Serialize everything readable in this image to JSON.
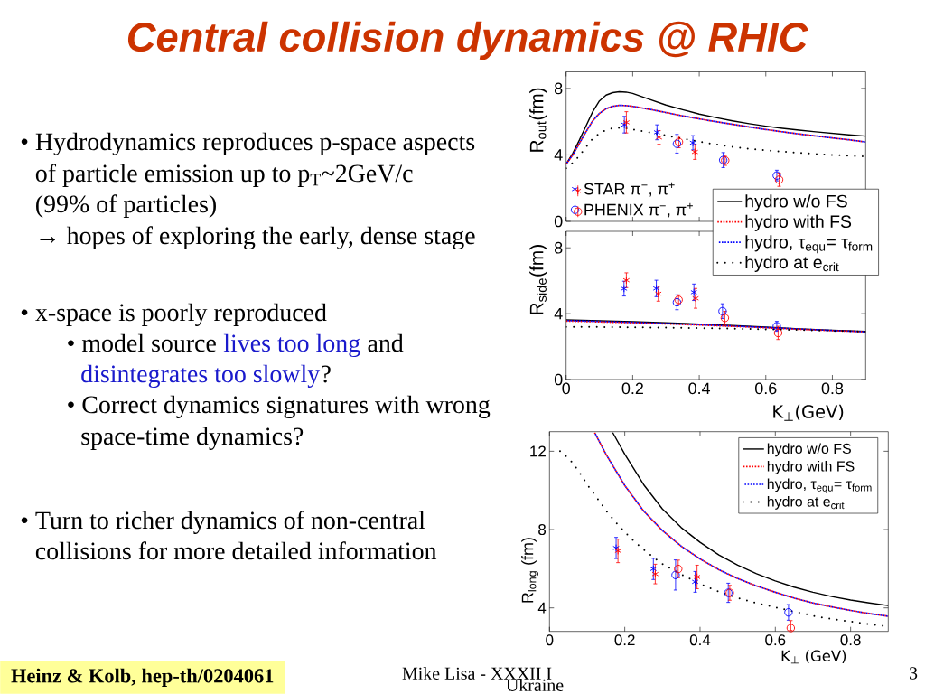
{
  "chart_data": [
    {
      "type": "other",
      "title": "Central collision dynamics @ RHIC",
      "annotations": [
        "• Hydrodynamics reproduces p-space aspects",
        "of particle emission up to p$_{T}$~2GeV/c",
        "(99% of particles)",
        "→ hopes of exploring the early, dense stage",
        "• x-space is poorly reproduced",
        "• model source",
        "lives too long",
        "and",
        "disintegrates too slowly",
        "?",
        "• Correct dynamics signatures with wrong",
        "space-time dynamics?",
        "• Turn to richer dynamics of non-central",
        "collisions for more detailed information",
        "Heinz & Kolb, hep-th/0204061",
        "Mike Lisa - XXXII I",
        "Ukraine",
        "3"
      ]
    },
    {
      "type": "line",
      "ylabel": "R$_{out}$(fm)",
      "xlim": [
        0,
        0.9
      ],
      "ylim": [
        0,
        9
      ],
      "xticks": [
        0,
        0.2,
        0.4,
        0.6,
        0.8
      ],
      "yticks": [
        0,
        4,
        8
      ],
      "tick_labels": "y",
      "legend": "bottom left",
      "series": [
        {
          "color": "#000000",
          "line_style": "solid",
          "x": [
            0,
            0.02,
            0.04,
            0.06,
            0.08,
            0.1,
            0.12,
            0.14,
            0.16,
            0.18,
            0.2,
            0.25,
            0.3,
            0.35,
            0.4,
            0.45,
            0.5,
            0.55,
            0.6,
            0.65,
            0.7,
            0.75,
            0.8,
            0.85,
            0.9
          ],
          "values": [
            3.45,
            4.1,
            4.9,
            5.75,
            6.6,
            7.25,
            7.6,
            7.75,
            7.8,
            7.78,
            7.7,
            7.35,
            7.0,
            6.72,
            6.46,
            6.25,
            6.05,
            5.88,
            5.73,
            5.6,
            5.49,
            5.39,
            5.3,
            5.21,
            5.13
          ]
        },
        {
          "color": "#ff0000",
          "line_style": "dashed",
          "x": [
            0,
            0.02,
            0.04,
            0.06,
            0.08,
            0.1,
            0.12,
            0.14,
            0.16,
            0.18,
            0.2,
            0.25,
            0.3,
            0.35,
            0.4,
            0.45,
            0.5,
            0.55,
            0.6,
            0.65,
            0.7,
            0.75,
            0.8,
            0.85,
            0.9
          ],
          "values": [
            3.45,
            4.0,
            4.7,
            5.4,
            6.05,
            6.5,
            6.78,
            6.93,
            6.98,
            6.97,
            6.92,
            6.75,
            6.55,
            6.35,
            6.17,
            6.0,
            5.84,
            5.68,
            5.53,
            5.39,
            5.26,
            5.14,
            5.02,
            4.91,
            4.78
          ]
        },
        {
          "color": "#0000ff",
          "line_style": "dashed",
          "x": [
            0,
            0.02,
            0.04,
            0.06,
            0.08,
            0.1,
            0.12,
            0.14,
            0.16,
            0.18,
            0.2,
            0.25,
            0.3,
            0.35,
            0.4,
            0.45,
            0.5,
            0.55,
            0.6,
            0.65,
            0.7,
            0.75,
            0.8,
            0.85,
            0.9
          ],
          "values": [
            3.45,
            4.0,
            4.7,
            5.4,
            6.05,
            6.5,
            6.78,
            6.93,
            6.98,
            6.97,
            6.92,
            6.75,
            6.55,
            6.35,
            6.17,
            6.0,
            5.84,
            5.68,
            5.53,
            5.39,
            5.26,
            5.14,
            5.02,
            4.91,
            4.78
          ]
        },
        {
          "color": "#000000",
          "line_style": "dotted",
          "x": [
            0,
            0.025,
            0.05,
            0.075,
            0.1,
            0.125,
            0.15,
            0.175,
            0.2,
            0.25,
            0.3,
            0.35,
            0.4,
            0.45,
            0.5,
            0.55,
            0.6,
            0.65,
            0.7,
            0.75,
            0.8,
            0.85,
            0.9
          ],
          "values": [
            3.2,
            3.6,
            4.22,
            4.87,
            5.3,
            5.55,
            5.64,
            5.62,
            5.53,
            5.35,
            5.17,
            4.98,
            4.8,
            4.63,
            4.49,
            4.37,
            4.28,
            4.2,
            4.13,
            4.06,
            4.0,
            3.95,
            3.9
          ]
        },
        {
          "name": "STAR π$^{−}$, π$^{+}$",
          "type": "scatter",
          "marker": "cross",
          "x": [
            0.175,
            0.181,
            0.273,
            0.279,
            0.381,
            0.387
          ],
          "values": [
            5.82,
            5.96,
            5.36,
            5.05,
            4.73,
            4.18
          ],
          "errors": [
            0.5,
            0.64,
            0.45,
            0.41,
            0.43,
            0.45
          ],
          "colors": [
            "#0000ff",
            "#ff0000",
            "#0000ff",
            "#ff0000",
            "#0000ff",
            "#ff0000"
          ]
        },
        {
          "name": "PHENIX π$^{−}$, π$^{+}$",
          "type": "scatter",
          "marker": "circle",
          "x": [
            0.333,
            0.339,
            0.472,
            0.478,
            0.633,
            0.64
          ],
          "values": [
            4.67,
            4.78,
            3.69,
            3.67,
            2.76,
            2.51
          ],
          "errors": [
            0.56,
            0.35,
            0.45,
            0.3,
            0.32,
            0.4
          ],
          "colors": [
            "#0000ff",
            "#ff0000",
            "#0000ff",
            "#ff0000",
            "#0000ff",
            "#ff0000"
          ]
        }
      ]
    },
    {
      "type": "line",
      "ylabel": "R$_{side}$(fm)",
      "xlabel": "K$_{⊥}$(GeV)",
      "xlim": [
        0,
        0.9
      ],
      "ylim": [
        0,
        9
      ],
      "xticks": [
        0,
        0.2,
        0.4,
        0.6,
        0.8
      ],
      "yticks": [
        0,
        4,
        8
      ],
      "legend": "top right",
      "series": [
        {
          "name": "hydro w/o FS",
          "color": "#000000",
          "line_style": "solid",
          "x": [
            0,
            0.1,
            0.2,
            0.3,
            0.4,
            0.5,
            0.6,
            0.7,
            0.8,
            0.9
          ],
          "values": [
            3.62,
            3.57,
            3.51,
            3.44,
            3.37,
            3.28,
            3.18,
            3.08,
            2.99,
            2.92
          ]
        },
        {
          "name": "hydro with FS",
          "color": "#ff0000",
          "line_style": "dashed",
          "x": [
            0,
            0.1,
            0.2,
            0.3,
            0.4,
            0.5,
            0.6,
            0.7,
            0.8,
            0.9
          ],
          "values": [
            3.55,
            3.5,
            3.45,
            3.38,
            3.31,
            3.23,
            3.14,
            3.05,
            2.97,
            2.9
          ]
        },
        {
          "name": "hydro, τ$_{equ}$= τ$_{form}$",
          "color": "#0000ff",
          "line_style": "dashed",
          "x": [
            0,
            0.1,
            0.2,
            0.3,
            0.4,
            0.5,
            0.6,
            0.7,
            0.8,
            0.9
          ],
          "values": [
            3.58,
            3.53,
            3.47,
            3.4,
            3.33,
            3.25,
            3.16,
            3.07,
            2.98,
            2.9
          ]
        },
        {
          "name": "hydro at e$_{crit}$",
          "color": "#000000",
          "line_style": "dotted",
          "x": [
            0,
            0.1,
            0.2,
            0.3,
            0.4,
            0.5,
            0.6,
            0.7,
            0.8,
            0.9
          ],
          "values": [
            3.2,
            3.19,
            3.17,
            3.15,
            3.12,
            3.09,
            3.05,
            3.01,
            2.96,
            2.91
          ]
        },
        {
          "type": "scatter",
          "marker": "cross",
          "x": [
            0.174,
            0.181,
            0.271,
            0.277,
            0.384,
            0.389
          ],
          "values": [
            5.52,
            6.03,
            5.53,
            5.21,
            5.3,
            4.93
          ],
          "errors": [
            0.45,
            0.45,
            0.5,
            0.45,
            0.5,
            0.6
          ],
          "colors": [
            "#0000ff",
            "#ff0000",
            "#0000ff",
            "#ff0000",
            "#0000ff",
            "#ff0000"
          ]
        },
        {
          "type": "scatter",
          "marker": "circle",
          "x": [
            0.333,
            0.338,
            0.47,
            0.477,
            0.633,
            0.637
          ],
          "values": [
            4.69,
            4.84,
            4.15,
            3.74,
            3.23,
            2.83
          ],
          "errors": [
            0.45,
            0.3,
            0.45,
            0.4,
            0.3,
            0.4
          ],
          "colors": [
            "#0000ff",
            "#ff0000",
            "#0000ff",
            "#ff0000",
            "#0000ff",
            "#ff0000"
          ]
        }
      ]
    },
    {
      "type": "line",
      "ylabel": "R$_{long}$ (fm)",
      "xlabel": "K$_{⊥}$ (GeV)",
      "xlim": [
        0,
        0.9
      ],
      "ylim": [
        2.8,
        13
      ],
      "xticks": [
        0,
        0.2,
        0.4,
        0.6,
        0.8
      ],
      "yticks": [
        4,
        8,
        12
      ],
      "legend": "top right",
      "series": [
        {
          "name": "hydro w/o FS",
          "color": "#000000",
          "line_style": "solid",
          "x": [
            0.168,
            0.2,
            0.25,
            0.3,
            0.35,
            0.4,
            0.45,
            0.5,
            0.55,
            0.6,
            0.65,
            0.7,
            0.75,
            0.8,
            0.85,
            0.9
          ],
          "values": [
            12.95,
            11.85,
            10.3,
            9.05,
            8.1,
            7.35,
            6.7,
            6.18,
            5.75,
            5.38,
            5.06,
            4.8,
            4.58,
            4.4,
            4.25,
            4.12
          ]
        },
        {
          "name": "hydro with FS",
          "color": "#ff0000",
          "line_style": "dashed",
          "x": [
            0.12,
            0.15,
            0.2,
            0.25,
            0.3,
            0.35,
            0.4,
            0.45,
            0.5,
            0.55,
            0.6,
            0.65,
            0.7,
            0.75,
            0.8,
            0.85,
            0.9
          ],
          "values": [
            12.95,
            11.85,
            10.25,
            8.95,
            7.95,
            7.15,
            6.5,
            5.95,
            5.5,
            5.12,
            4.8,
            4.5,
            4.25,
            4.05,
            3.87,
            3.71,
            3.57
          ]
        },
        {
          "name": "hydro, τ$_{equ}$= τ$_{form}$",
          "color": "#0000ff",
          "line_style": "dashed",
          "x": [
            0.12,
            0.15,
            0.2,
            0.25,
            0.3,
            0.35,
            0.4,
            0.45,
            0.5,
            0.55,
            0.6,
            0.65,
            0.7,
            0.75,
            0.8,
            0.85,
            0.9
          ],
          "values": [
            12.95,
            11.85,
            10.25,
            8.95,
            7.95,
            7.15,
            6.5,
            5.95,
            5.5,
            5.12,
            4.8,
            4.5,
            4.25,
            4.05,
            3.87,
            3.71,
            3.57
          ]
        },
        {
          "name": "hydro at e$_{crit}$",
          "color": "#000000",
          "line_style": "dotted",
          "x": [
            0.028,
            0.054,
            0.078,
            0.102,
            0.128,
            0.152,
            0.178,
            0.202,
            0.228,
            0.253,
            0.278,
            0.302,
            0.353,
            0.404,
            0.45,
            0.502,
            0.55,
            0.6,
            0.653,
            0.702,
            0.753,
            0.8,
            0.853,
            0.9
          ],
          "values": [
            12.0,
            11.58,
            10.97,
            10.25,
            9.57,
            8.93,
            8.33,
            7.83,
            7.34,
            6.94,
            6.56,
            6.22,
            5.68,
            5.19,
            4.83,
            4.5,
            4.25,
            4.03,
            3.8,
            3.59,
            3.42,
            3.3,
            3.16,
            3.05
          ]
        },
        {
          "type": "scatter",
          "marker": "cross",
          "x": [
            0.177,
            0.182,
            0.276,
            0.281,
            0.387,
            0.392
          ],
          "values": [
            7.06,
            6.91,
            5.99,
            5.73,
            5.33,
            5.58
          ],
          "errors": [
            0.54,
            0.6,
            0.54,
            0.5,
            0.53,
            0.6
          ],
          "colors": [
            "#0000ff",
            "#ff0000",
            "#0000ff",
            "#ff0000",
            "#0000ff",
            "#ff0000"
          ]
        },
        {
          "type": "scatter",
          "marker": "circle",
          "x": [
            0.335,
            0.342,
            0.475,
            0.479,
            0.635,
            0.641
          ],
          "values": [
            5.68,
            5.99,
            4.77,
            4.77,
            3.77,
            2.97
          ],
          "errors": [
            0.77,
            0.45,
            0.49,
            0.38,
            0.4,
            [
              2.85,
              3.35
            ]
          ],
          "colors": [
            "#0000ff",
            "#ff0000",
            "#0000ff",
            "#ff0000",
            "#0000ff",
            "#ff0000"
          ]
        }
      ]
    }
  ]
}
